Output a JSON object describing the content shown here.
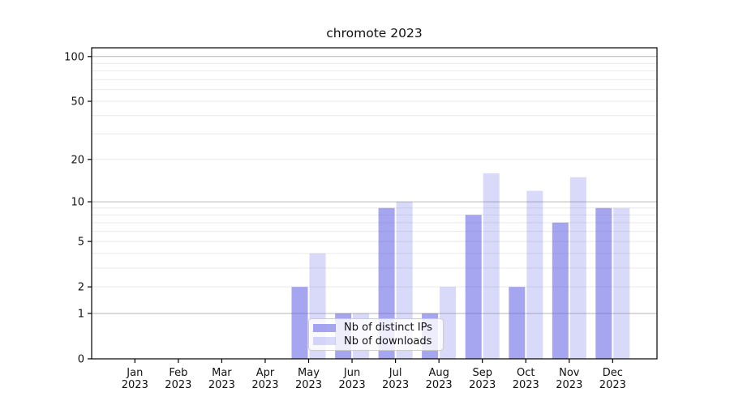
{
  "chart_data": {
    "type": "bar",
    "title": "chromote 2023",
    "categories": [
      "Jan 2023",
      "Feb 2023",
      "Mar 2023",
      "Apr 2023",
      "May 2023",
      "Jun 2023",
      "Jul 2023",
      "Aug 2023",
      "Sep 2023",
      "Oct 2023",
      "Nov 2023",
      "Dec 2023"
    ],
    "series": [
      {
        "name": "Nb of distinct IPs",
        "color": "#6666e6",
        "fill_opacity": 0.58,
        "values": [
          0,
          0,
          0,
          0,
          2,
          1,
          9,
          1,
          8,
          2,
          7,
          9
        ]
      },
      {
        "name": "Nb of downloads",
        "color": "#6666e6",
        "fill_opacity": 0.25,
        "values": [
          0,
          0,
          0,
          0,
          4,
          1,
          10,
          2,
          16,
          12,
          15,
          9
        ]
      }
    ],
    "xlabel": "",
    "ylabel": "",
    "yscale": "log1p",
    "ylim": [
      0,
      116
    ],
    "yticks": [
      0,
      1,
      2,
      5,
      10,
      20,
      50,
      100
    ],
    "grid": {
      "major_values": [
        1,
        10,
        100
      ],
      "minor_values": [
        2,
        3,
        4,
        5,
        6,
        7,
        8,
        9,
        20,
        30,
        40,
        50,
        60,
        70,
        80,
        90
      ],
      "major_color": "#b6b6b6",
      "minor_color": "#e9e9e9"
    },
    "legend_position": "lower center (inside plot)",
    "axis_color": "#000000",
    "text_color": "#111111",
    "background_color": "#ffffff"
  }
}
